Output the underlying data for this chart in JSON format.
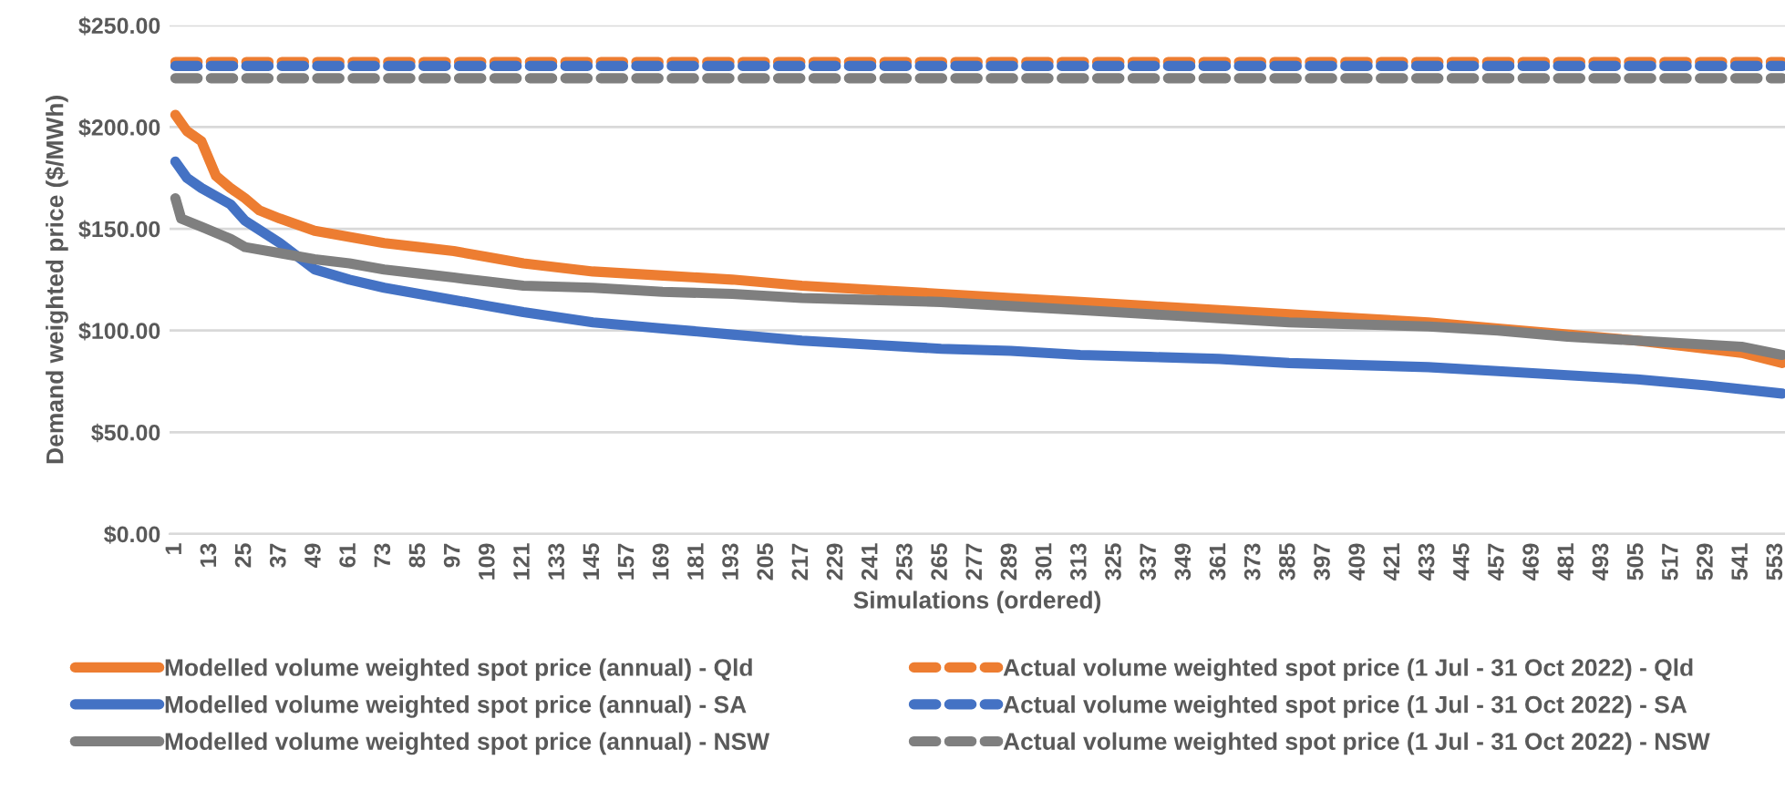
{
  "chart_data": {
    "type": "line",
    "xlabel": "Simulations (ordered)",
    "ylabel": "Demand weighted price ($/MWh)",
    "xlim": [
      -1,
      556
    ],
    "xticks": [
      1,
      13,
      25,
      37,
      49,
      61,
      73,
      85,
      97,
      109,
      121,
      133,
      145,
      157,
      169,
      181,
      193,
      205,
      217,
      229,
      241,
      253,
      265,
      277,
      289,
      301,
      313,
      325,
      337,
      349,
      361,
      373,
      385,
      397,
      409,
      421,
      433,
      445,
      457,
      469,
      481,
      493,
      505,
      517,
      529,
      541,
      553
    ],
    "ylim": [
      0,
      250
    ],
    "yticks": [
      {
        "value": 0,
        "label": "$0.00"
      },
      {
        "value": 50,
        "label": "$50.00"
      },
      {
        "value": 100,
        "label": "$100.00"
      },
      {
        "value": 150,
        "label": "$150.00"
      },
      {
        "value": 200,
        "label": "$200.00"
      },
      {
        "value": 250,
        "label": "$250.00"
      }
    ],
    "grid": "y",
    "legend": "bottom",
    "marker": "none",
    "series": [
      {
        "name": "Modelled volume weighted spot price (annual) - Qld",
        "color": "#ed7d31",
        "line_style": "solid",
        "x": [
          1,
          5,
          10,
          15,
          20,
          25,
          30,
          37,
          49,
          61,
          73,
          85,
          97,
          109,
          121,
          145,
          169,
          193,
          217,
          241,
          265,
          289,
          313,
          337,
          361,
          385,
          409,
          433,
          457,
          481,
          505,
          529,
          541,
          555
        ],
        "values": [
          206,
          198,
          193,
          176,
          170,
          165,
          159,
          155,
          149,
          146,
          143,
          141,
          139,
          136,
          133,
          129,
          127,
          125,
          122,
          120,
          118,
          116,
          114,
          112,
          110,
          108,
          106,
          104,
          101,
          98,
          95,
          91,
          89,
          84
        ]
      },
      {
        "name": "Modelled volume weighted spot price (annual) - SA",
        "color": "#4472c4",
        "line_style": "solid",
        "x": [
          1,
          5,
          10,
          20,
          25,
          37,
          49,
          61,
          73,
          85,
          97,
          109,
          121,
          145,
          169,
          193,
          217,
          241,
          265,
          289,
          313,
          337,
          361,
          385,
          409,
          433,
          457,
          481,
          505,
          529,
          555
        ],
        "values": [
          183,
          175,
          170,
          162,
          154,
          143,
          130,
          125,
          121,
          118,
          115,
          112,
          109,
          104,
          101,
          98,
          95,
          93,
          91,
          90,
          88,
          87,
          86,
          84,
          83,
          82,
          80,
          78,
          76,
          73,
          69
        ]
      },
      {
        "name": "Modelled volume weighted spot price (annual) - NSW",
        "color": "#7f7f7f",
        "line_style": "solid",
        "x": [
          1,
          3,
          10,
          20,
          25,
          37,
          49,
          61,
          73,
          85,
          97,
          109,
          121,
          145,
          169,
          193,
          217,
          241,
          265,
          289,
          313,
          337,
          361,
          385,
          409,
          433,
          457,
          481,
          505,
          529,
          541,
          555
        ],
        "values": [
          165,
          155,
          151,
          145,
          141,
          138,
          135,
          133,
          130,
          128,
          126,
          124,
          122,
          121,
          119,
          118,
          116,
          115,
          114,
          112,
          110,
          108,
          106,
          104,
          103,
          102,
          100,
          97,
          95,
          93,
          92,
          88
        ]
      },
      {
        "name": "Actual volume weighted spot price (1 Jul - 31 Oct 2022) - Qld",
        "color": "#ed7d31",
        "line_style": "dashed",
        "x": [
          1,
          555
        ],
        "values": [
          232,
          232
        ]
      },
      {
        "name": "Actual volume weighted spot price (1 Jul - 31 Oct 2022) - SA",
        "color": "#4472c4",
        "line_style": "dashed",
        "x": [
          1,
          555
        ],
        "values": [
          230,
          230
        ]
      },
      {
        "name": "Actual volume weighted spot price (1 Jul - 31 Oct 2022) - NSW",
        "color": "#7f7f7f",
        "line_style": "dashed",
        "x": [
          1,
          555
        ],
        "values": [
          224,
          224
        ]
      }
    ]
  }
}
